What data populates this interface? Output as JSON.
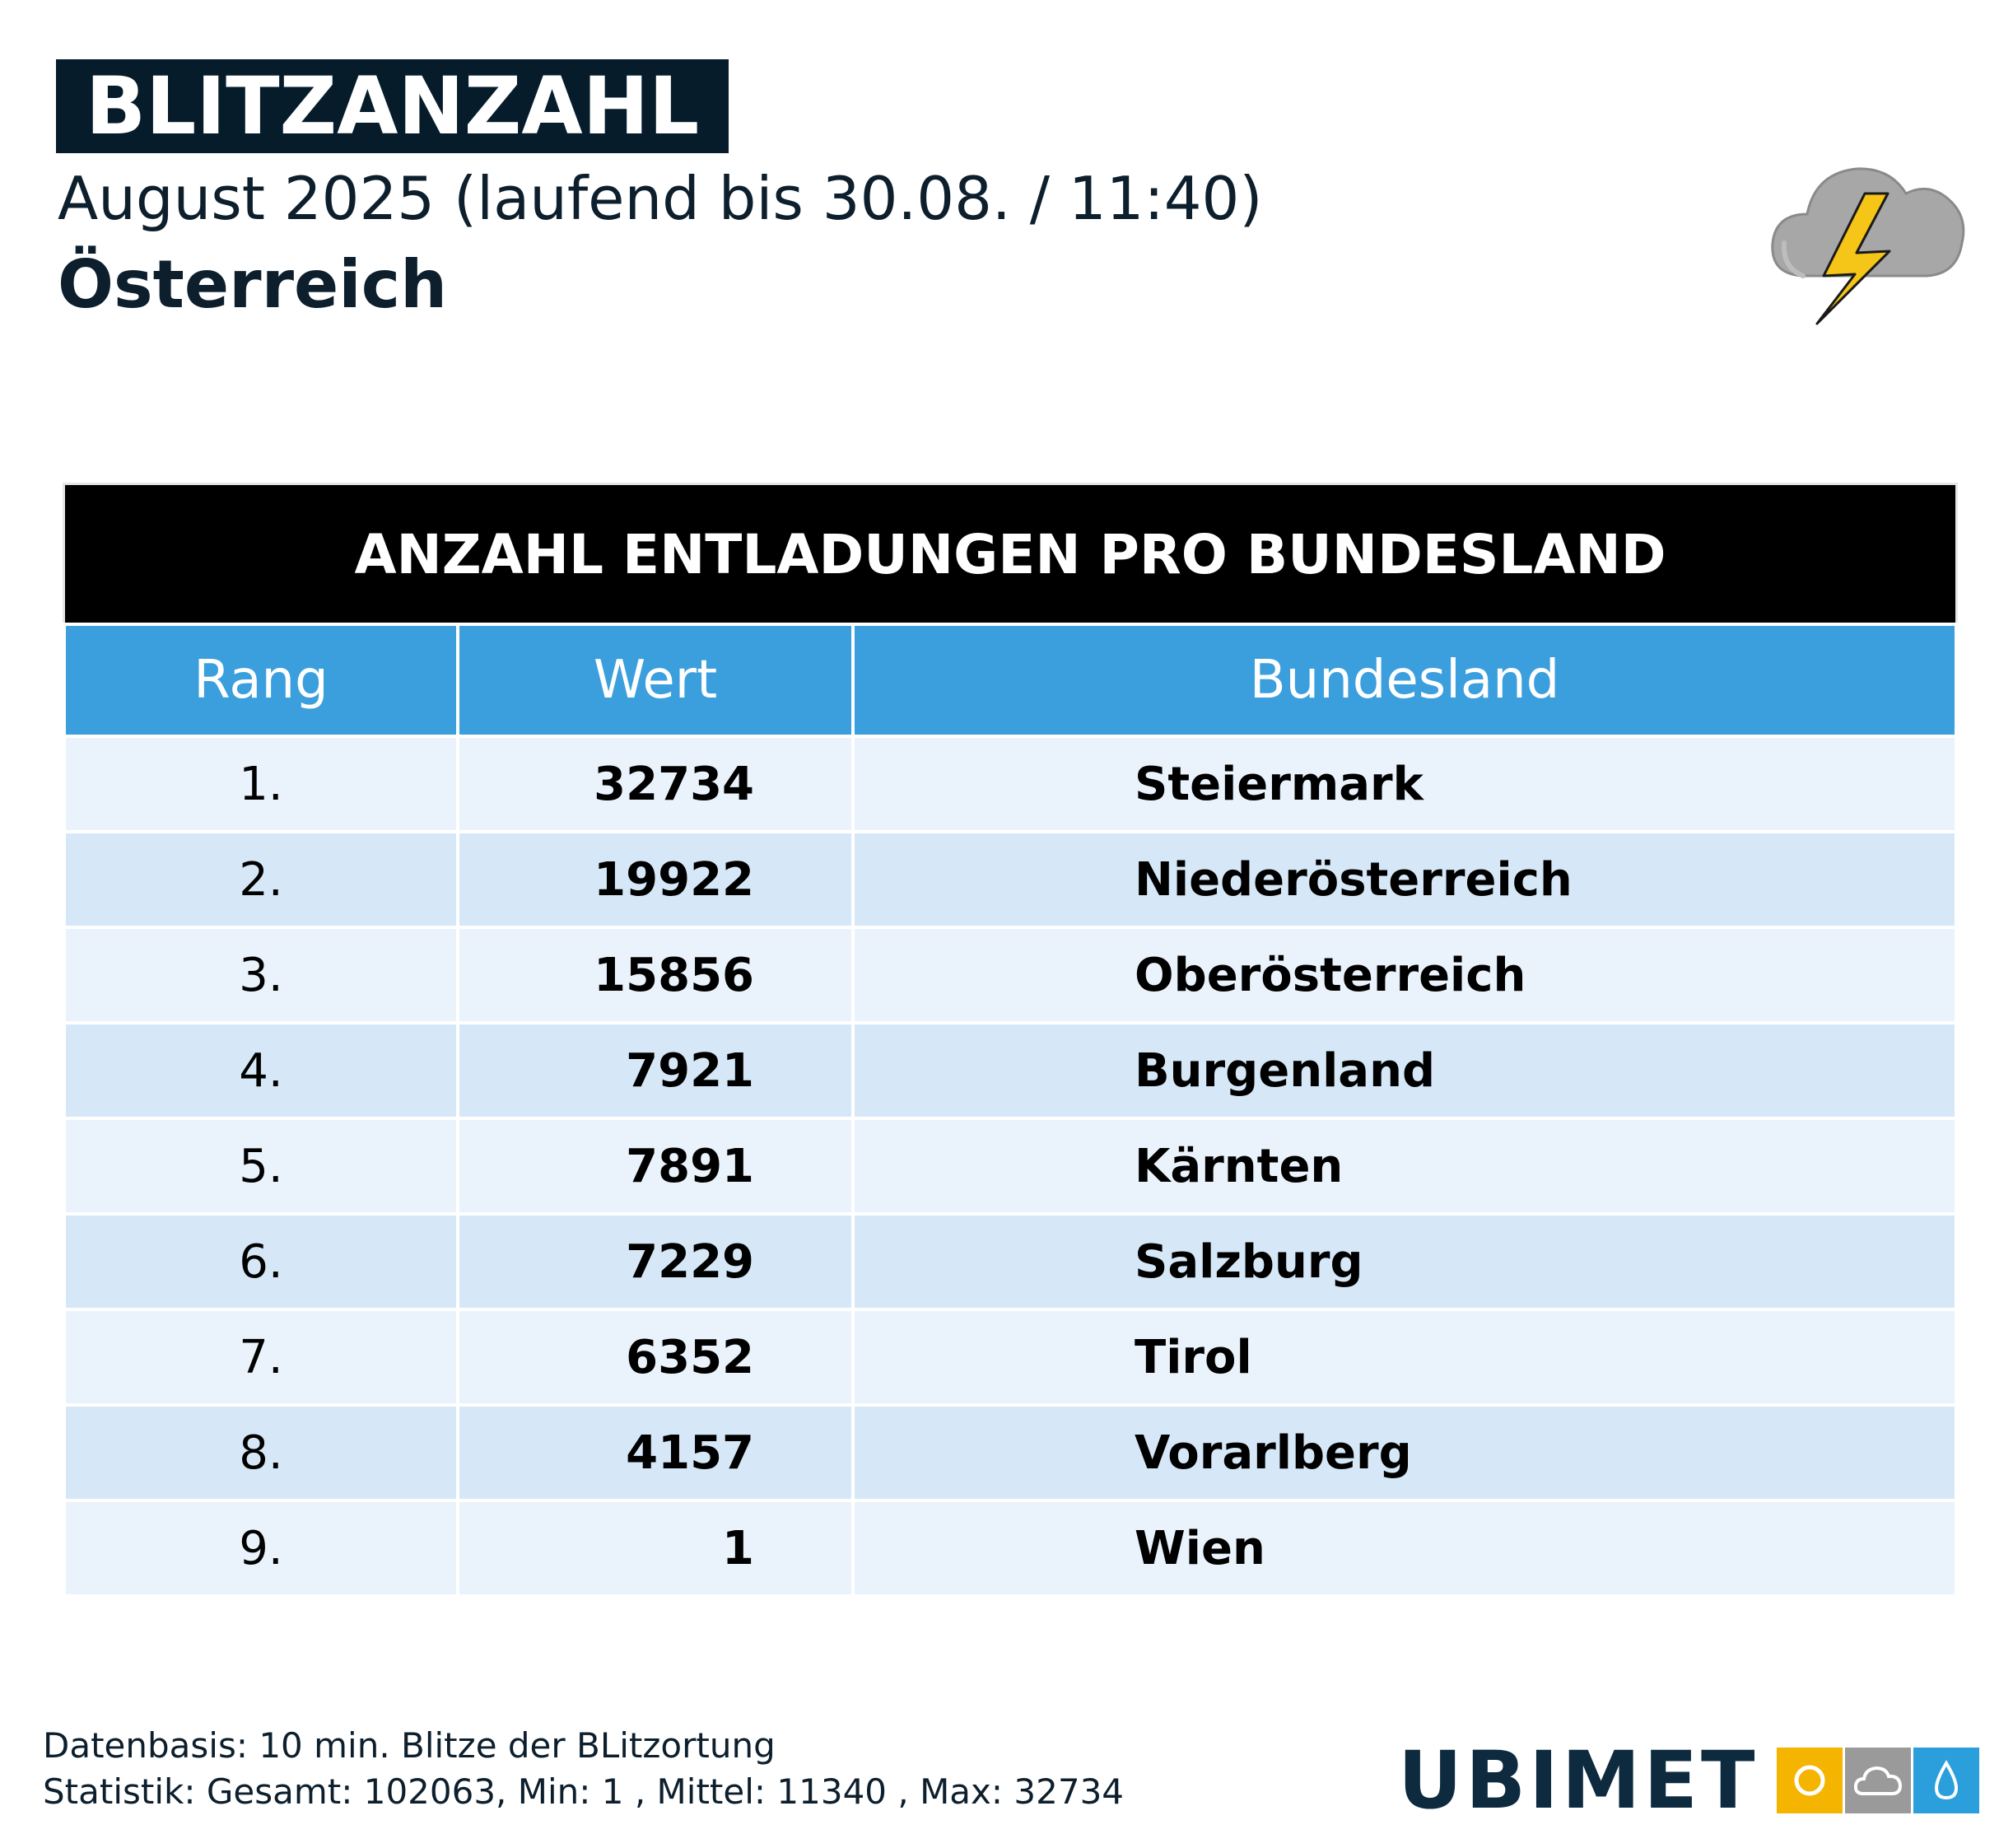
{
  "header": {
    "title": "BLITZANZAHL",
    "subtitle": "August 2025 (laufend bis 30.08. / 11:40)",
    "region": "Österreich"
  },
  "icons": {
    "weather": "thunderstorm-cloud-icon",
    "brand_tiles": [
      "sun-icon",
      "cloud-icon",
      "raindrop-icon"
    ]
  },
  "colors": {
    "title_bg": "#071c2a",
    "table_header_bg": "#3b9fde",
    "row_light": "#eaf3fc",
    "row_dark": "#d6e8f7",
    "brand_yellow": "#f5b400",
    "brand_grey": "#9a9a9a",
    "brand_blue": "#2a9fdc"
  },
  "chart_data": {
    "type": "table",
    "title": "ANZAHL ENTLADUNGEN PRO BUNDESLAND",
    "columns": [
      "Rang",
      "Wert",
      "Bundesland"
    ],
    "rows": [
      {
        "rank": "1.",
        "value": "32734",
        "state": "Steiermark"
      },
      {
        "rank": "2.",
        "value": "19922",
        "state": "Niederösterreich"
      },
      {
        "rank": "3.",
        "value": "15856",
        "state": "Oberösterreich"
      },
      {
        "rank": "4.",
        "value": "7921",
        "state": "Burgenland"
      },
      {
        "rank": "5.",
        "value": "7891",
        "state": "Kärnten"
      },
      {
        "rank": "6.",
        "value": "7229",
        "state": "Salzburg"
      },
      {
        "rank": "7.",
        "value": "6352",
        "state": "Tirol"
      },
      {
        "rank": "8.",
        "value": "4157",
        "state": "Vorarlberg"
      },
      {
        "rank": "9.",
        "value": "1",
        "state": "Wien"
      }
    ]
  },
  "footer": {
    "line1": "Datenbasis: 10 min. Blitze der BLitzortung",
    "line2": "Statistik: Gesamt: 102063, Min: 1 , Mittel: 11340 , Max: 32734"
  },
  "brand": {
    "name": "UBIMET"
  }
}
